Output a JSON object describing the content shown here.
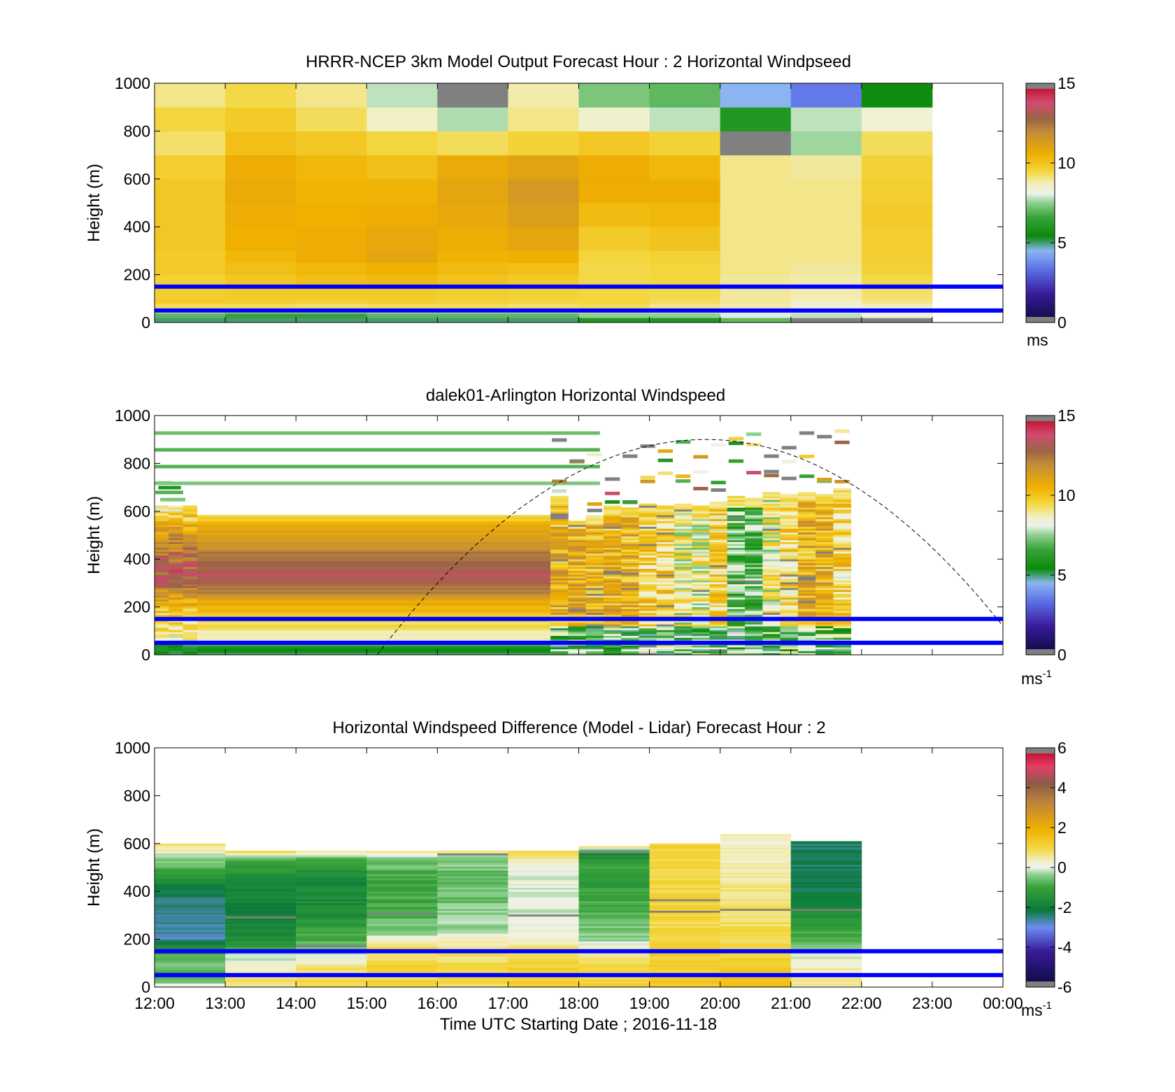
{
  "colors": {
    "overlay_line": "#0000ff",
    "no_data": "#ffffff",
    "out_of_range": "#808080"
  },
  "colormaps": {
    "windspeed": [
      [
        0.0,
        "#0a0a3c"
      ],
      [
        0.12,
        "#3a1a9a"
      ],
      [
        0.22,
        "#5b6ee6"
      ],
      [
        0.3,
        "#8ab5f0"
      ],
      [
        0.36,
        "#0a8a0a"
      ],
      [
        0.44,
        "#3aa33a"
      ],
      [
        0.5,
        "#8ed08e"
      ],
      [
        0.54,
        "#eef3ee"
      ],
      [
        0.58,
        "#f2eebc"
      ],
      [
        0.63,
        "#f3d840"
      ],
      [
        0.7,
        "#f0b000"
      ],
      [
        0.8,
        "#c18a3a"
      ],
      [
        0.85,
        "#9a6545"
      ],
      [
        0.92,
        "#d24a70"
      ],
      [
        1.0,
        "#c00020"
      ]
    ],
    "difference": [
      [
        0.0,
        "#0a0a3c"
      ],
      [
        0.15,
        "#3a1a9a"
      ],
      [
        0.25,
        "#6b8ef0"
      ],
      [
        0.32,
        "#0a7a3a"
      ],
      [
        0.42,
        "#3aa33a"
      ],
      [
        0.47,
        "#8ed08e"
      ],
      [
        0.5,
        "#eef3ee"
      ],
      [
        0.53,
        "#f2eebc"
      ],
      [
        0.58,
        "#f3d840"
      ],
      [
        0.66,
        "#f0b000"
      ],
      [
        0.78,
        "#b98040"
      ],
      [
        0.85,
        "#8a5a45"
      ],
      [
        0.92,
        "#e0406a"
      ],
      [
        1.0,
        "#c00020"
      ]
    ]
  },
  "x_axis": {
    "tick_labels": [
      "12:00",
      "13:00",
      "14:00",
      "15:00",
      "16:00",
      "17:00",
      "18:00",
      "19:00",
      "20:00",
      "21:00",
      "22:00",
      "23:00",
      "00:00"
    ],
    "label": "Time UTC  Starting Date ; 2016-11-18"
  },
  "overlay_heights_m": [
    50,
    150
  ],
  "chart_data": [
    {
      "type": "heatmap",
      "title": "HRRR-NCEP 3km Model Output   Forecast Hour : 2 Horizontal Windpseed",
      "ylabel": "Height (m)",
      "ylim": [
        0,
        1000
      ],
      "yticks": [
        "0",
        "200",
        "400",
        "600",
        "800",
        "1000"
      ],
      "xlim_hours": [
        12,
        24
      ],
      "colorbar": {
        "ticks": [
          "0",
          "5",
          "10",
          "15"
        ],
        "clim": [
          0,
          15
        ],
        "unit": "ms",
        "unit_sup": ""
      },
      "column_hours": [
        12,
        13,
        14,
        15,
        16,
        17,
        18,
        19,
        20,
        21,
        22
      ],
      "layer_bounds_m": [
        0,
        20,
        40,
        60,
        80,
        100,
        150,
        200,
        250,
        300,
        400,
        500,
        600,
        700,
        800,
        900,
        1000
      ],
      "values_ms": [
        [
          5,
          7,
          8.5,
          9.3,
          9.8,
          9.7,
          9.6,
          9.8,
          9.8,
          9.9,
          9.9,
          9.9,
          9.7,
          9.2,
          9.5,
          9.0
        ],
        [
          5,
          6.5,
          8.5,
          9.3,
          9.7,
          9.8,
          9.9,
          10.1,
          10.3,
          10.5,
          10.6,
          10.7,
          10.6,
          10.1,
          9.8,
          9.4
        ],
        [
          5,
          6.5,
          8.4,
          9.2,
          9.6,
          9.8,
          10.1,
          10.3,
          10.6,
          10.6,
          10.5,
          10.4,
          10.3,
          9.9,
          9.3,
          9.0
        ],
        [
          5,
          7,
          8.5,
          9.3,
          9.7,
          9.8,
          10.2,
          10.5,
          10.9,
          10.8,
          10.6,
          10.4,
          10.1,
          9.5,
          8.6,
          7.8
        ],
        [
          5,
          7,
          8.5,
          9.3,
          9.6,
          9.7,
          10.0,
          10.2,
          10.4,
          10.6,
          10.8,
          10.9,
          10.7,
          9.3,
          7.7,
          -1
        ],
        [
          5,
          7,
          8.5,
          9.2,
          9.5,
          9.6,
          9.8,
          10.1,
          10.5,
          10.9,
          11.2,
          11.4,
          11.0,
          9.6,
          9.0,
          8.8
        ],
        [
          6,
          7.5,
          8.8,
          9.3,
          9.5,
          9.5,
          9.4,
          9.4,
          9.5,
          9.8,
          10.2,
          10.6,
          10.6,
          9.9,
          8.5,
          7.3
        ],
        [
          6,
          7.5,
          8.6,
          9.0,
          9.3,
          9.4,
          9.5,
          9.5,
          9.6,
          10.0,
          10.3,
          10.6,
          10.3,
          9.6,
          7.8,
          7.0
        ],
        [
          7,
          8.0,
          8.5,
          8.8,
          8.9,
          8.9,
          8.9,
          9.0,
          9.0,
          9.0,
          9.0,
          9.0,
          9.0,
          -1,
          6.0,
          4.5
        ],
        [
          -1,
          7.8,
          8.1,
          8.4,
          8.6,
          8.8,
          8.8,
          8.9,
          9.0,
          9.0,
          9.0,
          9.0,
          8.9,
          7.6,
          7.8,
          3.5
        ],
        [
          -1,
          8.3,
          8.5,
          8.7,
          9.0,
          9.2,
          9.4,
          9.6,
          9.7,
          9.7,
          9.8,
          9.7,
          9.6,
          9.3,
          8.4,
          5.5
        ]
      ]
    },
    {
      "type": "heatmap",
      "title": "dalek01-Arlington  Horizontal Windspeed",
      "ylabel": "Height (m)",
      "ylim": [
        0,
        1000
      ],
      "yticks": [
        "0",
        "200",
        "400",
        "600",
        "800",
        "1000"
      ],
      "xlim_hours": [
        12,
        24
      ],
      "colorbar": {
        "ticks": [
          "0",
          "5",
          "10",
          "15"
        ],
        "clim": [
          0,
          15
        ],
        "unit": "ms",
        "unit_sup": "-1"
      },
      "dense_profile_ms": [
        [
          0,
          5
        ],
        [
          30,
          5.5
        ],
        [
          60,
          8.5
        ],
        [
          120,
          9.2
        ],
        [
          200,
          10.3
        ],
        [
          260,
          12
        ],
        [
          330,
          13.3
        ],
        [
          400,
          12.6
        ],
        [
          480,
          11.5
        ],
        [
          540,
          10.6
        ],
        [
          580,
          9.6
        ],
        [
          600,
          9.0
        ]
      ],
      "dense_time_range_hours": [
        12.6,
        17.6
      ],
      "dense_top_m": 580,
      "early_columns": [
        {
          "start_hour": 12.0,
          "end_hour": 12.6,
          "top_m": 620
        }
      ],
      "late_columns": [
        {
          "start_hour": 17.6,
          "end_hour": 17.85,
          "top_m": 660,
          "pattern": "brown"
        },
        {
          "start_hour": 17.85,
          "end_hour": 18.1,
          "top_m": 560,
          "pattern": "brown"
        },
        {
          "start_hour": 18.1,
          "end_hour": 18.35,
          "top_m": 580,
          "pattern": "brown"
        },
        {
          "start_hour": 18.35,
          "end_hour": 18.6,
          "top_m": 620,
          "pattern": "brown"
        },
        {
          "start_hour": 18.6,
          "end_hour": 18.85,
          "top_m": 610,
          "pattern": "brown"
        },
        {
          "start_hour": 18.85,
          "end_hour": 19.1,
          "top_m": 630,
          "pattern": "yellow"
        },
        {
          "start_hour": 19.1,
          "end_hour": 19.35,
          "top_m": 620,
          "pattern": "yellow"
        },
        {
          "start_hour": 19.35,
          "end_hour": 19.6,
          "top_m": 630,
          "pattern": "mixed"
        },
        {
          "start_hour": 19.6,
          "end_hour": 19.85,
          "top_m": 620,
          "pattern": "mixed"
        },
        {
          "start_hour": 19.85,
          "end_hour": 20.1,
          "top_m": 640,
          "pattern": "yellow"
        },
        {
          "start_hour": 20.1,
          "end_hour": 20.35,
          "top_m": 660,
          "pattern": "green"
        },
        {
          "start_hour": 20.35,
          "end_hour": 20.6,
          "top_m": 650,
          "pattern": "green"
        },
        {
          "start_hour": 20.6,
          "end_hour": 20.85,
          "top_m": 680,
          "pattern": "mixed"
        },
        {
          "start_hour": 20.85,
          "end_hour": 21.1,
          "top_m": 670,
          "pattern": "yellow"
        },
        {
          "start_hour": 21.1,
          "end_hour": 21.35,
          "top_m": 680,
          "pattern": "brown"
        },
        {
          "start_hour": 21.35,
          "end_hour": 21.6,
          "top_m": 670,
          "pattern": "brown"
        },
        {
          "start_hour": 21.6,
          "end_hour": 21.85,
          "top_m": 690,
          "pattern": "yellow"
        }
      ],
      "curve": {
        "style": "dashed",
        "peak_hour": 19.8,
        "peak_m": 900,
        "start_hour": 15.15,
        "start_m": 0,
        "end_hour": 24.0,
        "end_m": 120
      }
    },
    {
      "type": "heatmap",
      "title": "Horizontal Windspeed Difference (Model - Lidar) Forecast Hour : 2",
      "ylabel": "Height (m)",
      "ylim": [
        0,
        1000
      ],
      "yticks": [
        "0",
        "200",
        "400",
        "600",
        "800",
        "1000"
      ],
      "xlim_hours": [
        12,
        24
      ],
      "colorbar": {
        "ticks": [
          "-6",
          "-4",
          "-2",
          "0",
          "2",
          "4",
          "6"
        ],
        "clim": [
          -6,
          6
        ],
        "unit": "ms",
        "unit_sup": "-1"
      },
      "column_hours": [
        12,
        13,
        14,
        15,
        16,
        17,
        18,
        19,
        20,
        21
      ],
      "column_tops_m": [
        600,
        570,
        570,
        570,
        570,
        570,
        590,
        600,
        640,
        610
      ],
      "profiles_m_diff": [
        [
          [
            0,
            0.3
          ],
          [
            40,
            -1
          ],
          [
            80,
            -0.6
          ],
          [
            150,
            -0.8
          ],
          [
            200,
            -2.8
          ],
          [
            330,
            -2.6
          ],
          [
            420,
            -2.0
          ],
          [
            500,
            -0.8
          ],
          [
            560,
            0
          ],
          [
            600,
            1.0
          ]
        ],
        [
          [
            0,
            0.8
          ],
          [
            60,
            0.6
          ],
          [
            130,
            -0.2
          ],
          [
            180,
            -1.5
          ],
          [
            300,
            -2.0
          ],
          [
            420,
            -1.8
          ],
          [
            520,
            -1.0
          ],
          [
            560,
            0.4
          ],
          [
            570,
            1.0
          ]
        ],
        [
          [
            0,
            0.9
          ],
          [
            80,
            0.7
          ],
          [
            150,
            -0.2
          ],
          [
            200,
            -0.8
          ],
          [
            300,
            -1.6
          ],
          [
            450,
            -1.8
          ],
          [
            540,
            -0.8
          ],
          [
            570,
            0.8
          ]
        ],
        [
          [
            0,
            0.9
          ],
          [
            80,
            1.0
          ],
          [
            180,
            0.8
          ],
          [
            220,
            -0.3
          ],
          [
            320,
            -0.9
          ],
          [
            450,
            -1.0
          ],
          [
            540,
            -0.4
          ],
          [
            570,
            0.6
          ]
        ],
        [
          [
            0,
            0.9
          ],
          [
            80,
            1.0
          ],
          [
            180,
            0.4
          ],
          [
            250,
            -0.3
          ],
          [
            350,
            -0.5
          ],
          [
            450,
            -0.7
          ],
          [
            540,
            -0.4
          ],
          [
            570,
            0.6
          ]
        ],
        [
          [
            0,
            1.3
          ],
          [
            120,
            1.0
          ],
          [
            200,
            0.3
          ],
          [
            300,
            -0.1
          ],
          [
            450,
            0.0
          ],
          [
            520,
            0.3
          ],
          [
            570,
            1.0
          ]
        ],
        [
          [
            0,
            1.2
          ],
          [
            120,
            0.8
          ],
          [
            200,
            -0.3
          ],
          [
            300,
            -0.8
          ],
          [
            450,
            -1.2
          ],
          [
            520,
            -1.0
          ],
          [
            560,
            -2.0
          ],
          [
            590,
            0.8
          ]
        ],
        [
          [
            0,
            1.3
          ],
          [
            200,
            1.0
          ],
          [
            400,
            1.0
          ],
          [
            600,
            1.1
          ]
        ],
        [
          [
            0,
            1.6
          ],
          [
            100,
            1.3
          ],
          [
            200,
            0.9
          ],
          [
            400,
            0.6
          ],
          [
            550,
            0.3
          ],
          [
            640,
            0.2
          ]
        ],
        [
          [
            0,
            0.5
          ],
          [
            100,
            0.3
          ],
          [
            150,
            -0.3
          ],
          [
            250,
            -1.2
          ],
          [
            400,
            -2.2
          ],
          [
            600,
            -2.4
          ],
          [
            610,
            -1.6
          ]
        ]
      ]
    }
  ]
}
